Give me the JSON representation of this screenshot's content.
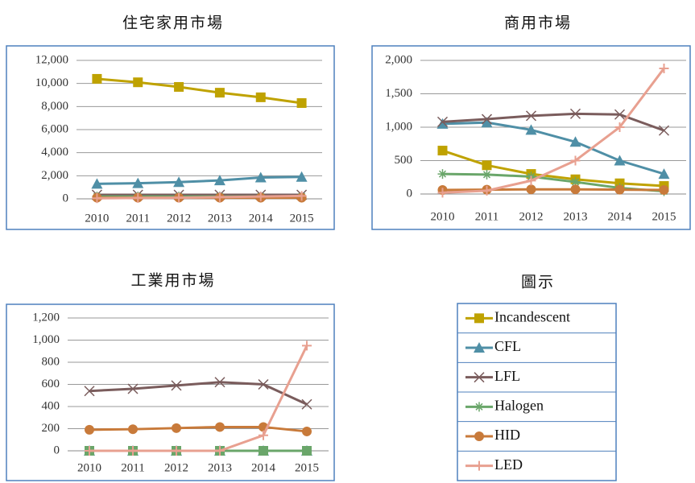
{
  "legend_title": "圖示",
  "chart_data": [
    {
      "type": "line",
      "title": "住宅家用市場",
      "categories": [
        "2010",
        "2011",
        "2012",
        "2013",
        "2014",
        "2015"
      ],
      "ylim": [
        0,
        12000
      ],
      "yticks": [
        0,
        {
          "value": 2000,
          "label": "2,000"
        },
        {
          "value": 4000,
          "label": "4,000"
        },
        {
          "value": 6000,
          "label": "6,000"
        },
        {
          "value": 8000,
          "label": "8,000"
        },
        {
          "value": 10000,
          "label": "10,000"
        },
        {
          "value": 12000,
          "label": "12,000"
        }
      ],
      "grid": true,
      "series": [
        {
          "name": "Incandescent",
          "color": "#bfa200",
          "marker": "square",
          "values": [
            10400,
            10100,
            9700,
            9200,
            8800,
            8300
          ]
        },
        {
          "name": "CFL",
          "color": "#4f8fa6",
          "marker": "triangle",
          "values": [
            1300,
            1350,
            1450,
            1600,
            1850,
            1900
          ]
        },
        {
          "name": "LFL",
          "color": "#7a5c5c",
          "marker": "x",
          "values": [
            350,
            350,
            350,
            350,
            350,
            350
          ]
        },
        {
          "name": "Halogen",
          "color": "#6aa66a",
          "marker": "star",
          "values": [
            200,
            200,
            200,
            200,
            200,
            200
          ]
        },
        {
          "name": "HID",
          "color": "#c87a3a",
          "marker": "circle",
          "values": [
            100,
            100,
            100,
            100,
            100,
            100
          ]
        },
        {
          "name": "LED",
          "color": "#e8a090",
          "marker": "plus",
          "values": [
            50,
            80,
            100,
            150,
            200,
            250
          ]
        }
      ]
    },
    {
      "type": "line",
      "title": "商用市場",
      "categories": [
        "2010",
        "2011",
        "2012",
        "2013",
        "2014",
        "2015"
      ],
      "ylim": [
        0,
        2000
      ],
      "yticks": [
        0,
        500,
        {
          "value": 1000,
          "label": "1,000"
        },
        {
          "value": 1500,
          "label": "1,500"
        },
        {
          "value": 2000,
          "label": "2,000"
        }
      ],
      "grid": true,
      "series": [
        {
          "name": "Incandescent",
          "color": "#bfa200",
          "marker": "square",
          "values": [
            650,
            430,
            300,
            220,
            160,
            120
          ]
        },
        {
          "name": "CFL",
          "color": "#4f8fa6",
          "marker": "triangle",
          "values": [
            1050,
            1070,
            960,
            780,
            500,
            300
          ]
        },
        {
          "name": "LFL",
          "color": "#7a5c5c",
          "marker": "x",
          "values": [
            1080,
            1120,
            1170,
            1200,
            1190,
            950
          ]
        },
        {
          "name": "Halogen",
          "color": "#6aa66a",
          "marker": "star",
          "values": [
            300,
            290,
            260,
            180,
            90,
            40
          ]
        },
        {
          "name": "HID",
          "color": "#c87a3a",
          "marker": "circle",
          "values": [
            60,
            65,
            70,
            70,
            65,
            60
          ]
        },
        {
          "name": "LED",
          "color": "#e8a090",
          "marker": "plus",
          "values": [
            20,
            50,
            200,
            500,
            1000,
            1880
          ]
        }
      ]
    },
    {
      "type": "line",
      "title": "工業用市場",
      "categories": [
        "2010",
        "2011",
        "2012",
        "2013",
        "2014",
        "2015"
      ],
      "ylim": [
        0,
        1200
      ],
      "yticks": [
        0,
        200,
        400,
        600,
        800,
        {
          "value": 1000,
          "label": "1,000"
        },
        {
          "value": 1200,
          "label": "1,200"
        }
      ],
      "grid": true,
      "series": [
        {
          "name": "Incandescent",
          "color": "#bfa200",
          "marker": "square",
          "values": [
            0,
            0,
            0,
            0,
            0,
            0
          ]
        },
        {
          "name": "CFL",
          "color": "#4f8fa6",
          "marker": "triangle",
          "values": [
            0,
            0,
            0,
            0,
            0,
            0
          ]
        },
        {
          "name": "LFL",
          "color": "#7a5c5c",
          "marker": "x",
          "values": [
            540,
            560,
            590,
            620,
            600,
            420
          ]
        },
        {
          "name": "Halogen",
          "color": "#6aa66a",
          "marker": "square",
          "values": [
            0,
            0,
            0,
            0,
            0,
            0
          ]
        },
        {
          "name": "HID",
          "color": "#c87a3a",
          "marker": "circle",
          "values": [
            190,
            195,
            205,
            215,
            215,
            175
          ]
        },
        {
          "name": "LED",
          "color": "#e8a090",
          "marker": "plus",
          "values": [
            0,
            0,
            0,
            0,
            140,
            950
          ]
        }
      ]
    }
  ]
}
